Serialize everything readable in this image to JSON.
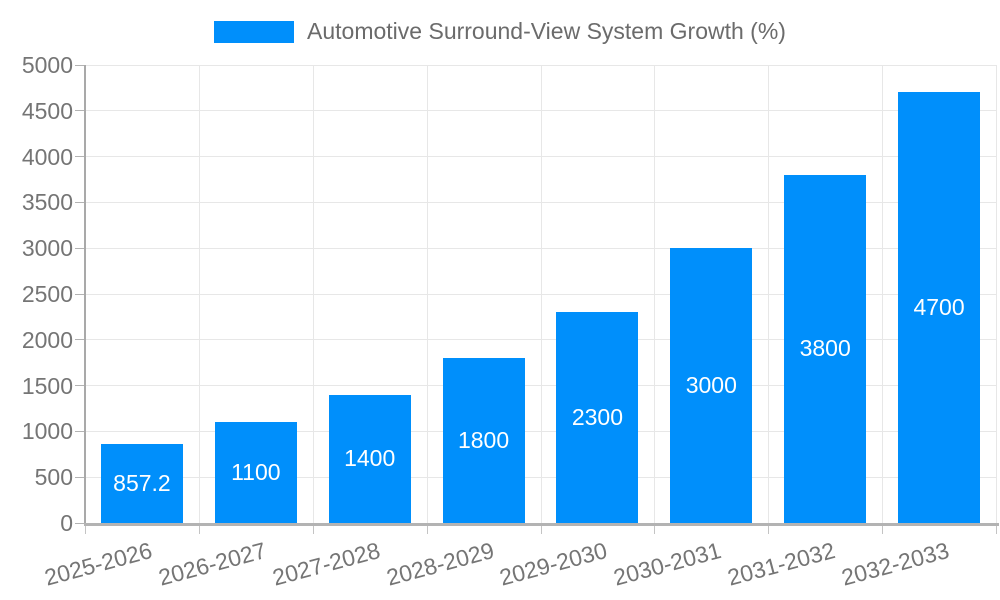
{
  "chart_data": {
    "type": "bar",
    "title": "Automotive Surround-View System Growth (%)",
    "legend": {
      "position": "top",
      "label": "Automotive Surround-View System Growth (%)"
    },
    "categories": [
      "2025-2026",
      "2026-2027",
      "2027-2028",
      "2028-2029",
      "2029-2030",
      "2030-2031",
      "2031-2032",
      "2032-2033"
    ],
    "values": [
      857.2,
      1100,
      1400,
      1800,
      2300,
      3000,
      3800,
      4700
    ],
    "bar_value_labels": [
      "857.2",
      "1100",
      "1400",
      "1800",
      "2300",
      "3000",
      "3800",
      "4700"
    ],
    "xlabel": "",
    "ylabel": "",
    "ylim": [
      0,
      5000
    ],
    "y_tick_step": 500,
    "y_ticks": [
      "0",
      "500",
      "1000",
      "1500",
      "2000",
      "2500",
      "3000",
      "3500",
      "4000",
      "4500",
      "5000"
    ],
    "grid": "both",
    "x_label_rotation_deg": -15,
    "colors": {
      "bar": "#008FFB",
      "bar_label": "#ffffff",
      "grid": "#e7e7e7",
      "axis_line": "#b3b3b3",
      "tick_mark": "#c4c4c4",
      "tick_label": "#757575",
      "legend_text": "#6b6b6b",
      "background": "#ffffff"
    }
  }
}
